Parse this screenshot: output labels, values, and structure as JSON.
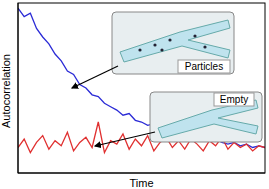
{
  "chart_data": {
    "type": "line",
    "x_label": "Time",
    "y_label": "Autocorrelation",
    "x": [
      0,
      1,
      2,
      3,
      4,
      5,
      6,
      7,
      8,
      9,
      10,
      11,
      12,
      13,
      14,
      15,
      16,
      17,
      18,
      19,
      20,
      21,
      22,
      23,
      24,
      25,
      26,
      27,
      28,
      29,
      30,
      31,
      32,
      33,
      34,
      35,
      36,
      37,
      38,
      39,
      40
    ],
    "xlim": [
      0,
      40
    ],
    "ylim": [
      0,
      1
    ],
    "tick_labels": false,
    "annotations": [
      {
        "text": "Particles"
      },
      {
        "text": "Empty"
      }
    ],
    "series": [
      {
        "name": "Particles",
        "color": "#2b2bd6",
        "values": [
          0.97,
          0.92,
          0.94,
          0.85,
          0.8,
          0.76,
          0.7,
          0.66,
          0.6,
          0.58,
          0.52,
          0.5,
          0.46,
          0.45,
          0.41,
          0.39,
          0.37,
          0.34,
          0.35,
          0.31,
          0.3,
          0.28,
          0.29,
          0.26,
          0.25,
          0.24,
          0.25,
          0.22,
          0.21,
          0.22,
          0.2,
          0.19,
          0.2,
          0.18,
          0.17,
          0.18,
          0.16,
          0.17,
          0.15,
          0.16,
          0.15
        ]
      },
      {
        "name": "Empty",
        "color": "#e03030",
        "values": [
          0.15,
          0.2,
          0.12,
          0.18,
          0.22,
          0.14,
          0.19,
          0.16,
          0.24,
          0.13,
          0.18,
          0.21,
          0.15,
          0.3,
          0.12,
          0.19,
          0.17,
          0.23,
          0.14,
          0.2,
          0.16,
          0.22,
          0.13,
          0.18,
          0.21,
          0.15,
          0.19,
          0.14,
          0.2,
          0.17,
          0.13,
          0.19,
          0.16,
          0.21,
          0.14,
          0.18,
          0.15,
          0.17,
          0.13,
          0.16,
          0.15
        ]
      }
    ]
  }
}
